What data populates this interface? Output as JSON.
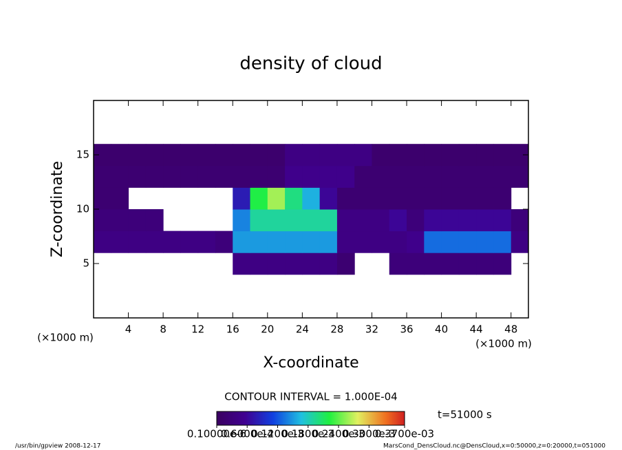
{
  "chart_data": {
    "type": "heatmap",
    "title": "density of cloud",
    "x_label": "X-coordinate",
    "y_label": "Z-coordinate",
    "x_unit": "(×1000 m)",
    "y_unit": "(×1000 m)",
    "contour_interval": "CONTOUR INTERVAL = 1.000E-04",
    "time": "t=51000 s",
    "footer_left": "/usr/bin/gpview   2008-12-17",
    "footer_right": "MarsCond_DensCloud.nc@DensCloud,x=0:50000,z=0:20000,t=051000",
    "xlim": [
      0,
      50
    ],
    "ylim": [
      0,
      20
    ],
    "xticks": [
      4,
      8,
      12,
      16,
      20,
      24,
      28,
      32,
      36,
      40,
      44,
      48
    ],
    "yticks": [
      5,
      10,
      15
    ],
    "x": [
      1,
      3,
      5,
      7,
      9,
      11,
      13,
      15,
      17,
      19,
      21,
      23,
      25,
      27,
      29,
      31,
      33,
      35,
      37,
      39,
      41,
      43,
      45,
      47,
      49
    ],
    "y": [
      1,
      3,
      5,
      7,
      9,
      11,
      13,
      15,
      17,
      19
    ],
    "clim": [
      1e-07,
      0.00037
    ],
    "cticks": [
      {
        "value": 1e-07,
        "label": "0.10000e-6"
      },
      {
        "value": 6e-05,
        "label": "0.6000e-4"
      },
      {
        "value": 0.00012,
        "label": "0.1200e-3"
      },
      {
        "value": 0.00018,
        "label": "0.1800e-3"
      },
      {
        "value": 0.00024,
        "label": "0.2400e-3"
      },
      {
        "value": 0.0003,
        "label": "0.3000e-3"
      },
      {
        "value": 0.00037,
        "label": "0.3700e-03"
      }
    ],
    "z": [
      [
        null,
        null,
        null,
        null,
        null,
        null,
        null,
        null,
        null,
        null,
        null,
        null,
        null,
        null,
        null,
        null,
        null,
        null,
        null,
        null,
        null,
        null,
        null,
        null,
        null
      ],
      [
        null,
        null,
        null,
        null,
        null,
        null,
        null,
        null,
        null,
        null,
        null,
        null,
        null,
        null,
        null,
        null,
        null,
        null,
        null,
        null,
        null,
        null,
        null,
        null,
        null
      ],
      [
        null,
        null,
        null,
        null,
        null,
        null,
        null,
        null,
        4e-05,
        4e-05,
        4e-05,
        4e-05,
        4e-05,
        4e-05,
        2e-05,
        null,
        null,
        3e-05,
        3e-05,
        3e-05,
        3e-05,
        3e-05,
        3e-05,
        3e-05,
        null
      ],
      [
        4e-05,
        4e-05,
        4e-05,
        4e-05,
        4e-05,
        4e-05,
        4e-05,
        3e-05,
        0.00015,
        0.00015,
        0.00015,
        0.00015,
        0.00015,
        0.00015,
        4e-05,
        4e-05,
        4e-05,
        4e-05,
        5e-05,
        0.00013,
        0.00013,
        0.00013,
        0.00013,
        0.00013,
        4e-05
      ],
      [
        3e-05,
        3e-05,
        3e-05,
        3e-05,
        null,
        null,
        null,
        null,
        0.00014,
        0.00019,
        0.00019,
        0.00019,
        0.00019,
        0.00019,
        4e-05,
        4e-05,
        4e-05,
        6e-05,
        3e-05,
        6e-05,
        6e-05,
        6e-05,
        6e-05,
        6e-05,
        3e-05
      ],
      [
        2e-05,
        2e-05,
        null,
        null,
        null,
        null,
        null,
        null,
        8e-05,
        0.00022,
        0.00026,
        0.0002,
        0.00016,
        6e-05,
        2e-05,
        2e-05,
        2e-05,
        2e-05,
        2e-05,
        2e-05,
        2e-05,
        2e-05,
        2e-05,
        2e-05,
        null
      ],
      [
        2e-05,
        2e-05,
        2e-05,
        2e-05,
        2e-05,
        2e-05,
        2e-05,
        2e-05,
        2e-05,
        2e-05,
        2e-05,
        5e-05,
        5e-05,
        5e-05,
        5e-05,
        2e-05,
        2e-05,
        2e-05,
        2e-05,
        2e-05,
        2e-05,
        2e-05,
        2e-05,
        2e-05,
        2e-05
      ],
      [
        1.5e-05,
        1.5e-05,
        1.5e-05,
        1.5e-05,
        1.5e-05,
        1.5e-05,
        1.5e-05,
        1.5e-05,
        1.5e-05,
        1.5e-05,
        1.5e-05,
        4e-05,
        4e-05,
        4e-05,
        4e-05,
        4e-05,
        1.5e-05,
        1.5e-05,
        1.5e-05,
        1.5e-05,
        1.5e-05,
        1.5e-05,
        1.5e-05,
        1.5e-05,
        1.5e-05
      ],
      [
        null,
        null,
        null,
        null,
        null,
        null,
        null,
        null,
        null,
        null,
        null,
        null,
        null,
        null,
        null,
        null,
        null,
        null,
        null,
        null,
        null,
        null,
        null,
        null,
        null
      ],
      [
        null,
        null,
        null,
        null,
        null,
        null,
        null,
        null,
        null,
        null,
        null,
        null,
        null,
        null,
        null,
        null,
        null,
        null,
        null,
        null,
        null,
        null,
        null,
        null,
        null
      ]
    ]
  }
}
